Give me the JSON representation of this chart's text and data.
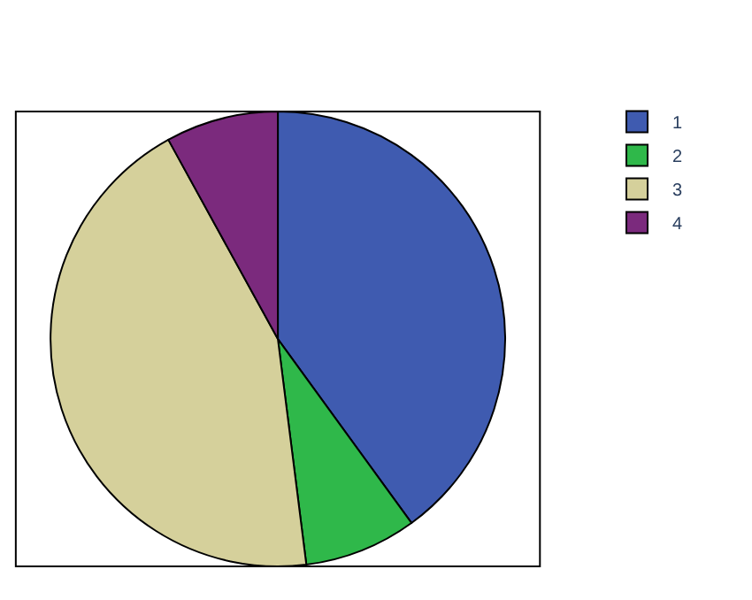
{
  "chart_data": {
    "type": "pie",
    "categories": [
      "1",
      "2",
      "3",
      "4"
    ],
    "values": [
      40,
      8,
      44,
      8
    ],
    "colors": [
      "#3f5bb0",
      "#2fb84a",
      "#d5d09b",
      "#7b2a7d"
    ],
    "legend": "top right"
  }
}
